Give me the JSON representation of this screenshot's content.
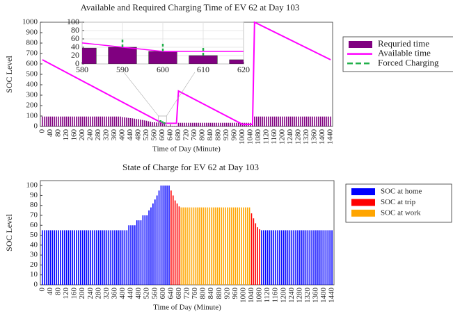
{
  "chart_data": [
    {
      "type": "bar",
      "title": "Available and Required Charging Time of EV 62 at Day 103",
      "xlabel": "Time of Day (Minute)",
      "ylabel": "SOC Level",
      "x": [
        0,
        10,
        20,
        30,
        40,
        50,
        60,
        70,
        80,
        90,
        100,
        110,
        120,
        130,
        140,
        150,
        160,
        170,
        180,
        190,
        200,
        210,
        220,
        230,
        240,
        250,
        260,
        270,
        280,
        290,
        300,
        310,
        320,
        330,
        340,
        350,
        360,
        370,
        380,
        390,
        400,
        410,
        420,
        430,
        440,
        450,
        460,
        470,
        480,
        490,
        500,
        510,
        520,
        530,
        540,
        550,
        560,
        570,
        580,
        590,
        600,
        610,
        620,
        630,
        640,
        650,
        660,
        670,
        680,
        690,
        700,
        710,
        720,
        730,
        740,
        750,
        760,
        770,
        780,
        790,
        800,
        810,
        820,
        830,
        840,
        850,
        860,
        870,
        880,
        890,
        900,
        910,
        920,
        930,
        940,
        950,
        960,
        970,
        980,
        990,
        1000,
        1010,
        1020,
        1030,
        1040,
        1050,
        1060,
        1070,
        1080,
        1090,
        1100,
        1110,
        1120,
        1130,
        1140,
        1150,
        1160,
        1170,
        1180,
        1190,
        1200,
        1210,
        1220,
        1230,
        1240,
        1250,
        1260,
        1270,
        1280,
        1290,
        1300,
        1310,
        1320,
        1330,
        1340,
        1350,
        1360,
        1370,
        1380,
        1390,
        1400,
        1410,
        1420,
        1430,
        1440
      ],
      "series": [
        {
          "name": "Requried time",
          "style": "bar",
          "color": "#800080",
          "values": [
            95,
            95,
            95,
            95,
            95,
            95,
            95,
            95,
            95,
            95,
            95,
            95,
            95,
            95,
            95,
            95,
            95,
            95,
            95,
            95,
            95,
            95,
            95,
            95,
            95,
            95,
            95,
            95,
            95,
            95,
            95,
            95,
            95,
            95,
            95,
            95,
            95,
            95,
            95,
            95,
            90,
            88,
            85,
            82,
            80,
            78,
            75,
            72,
            70,
            65,
            62,
            58,
            55,
            50,
            45,
            40,
            40,
            38,
            38,
            40,
            30,
            20,
            10,
            5,
            5,
            5,
            5,
            5,
            35,
            35,
            35,
            35,
            35,
            35,
            35,
            35,
            35,
            35,
            35,
            35,
            35,
            35,
            35,
            35,
            35,
            35,
            35,
            35,
            35,
            35,
            35,
            35,
            35,
            35,
            35,
            35,
            35,
            35,
            35,
            35,
            35,
            35,
            35,
            35,
            35,
            35,
            95,
            95,
            95,
            95,
            95,
            95,
            95,
            95,
            95,
            95,
            95,
            95,
            95,
            95,
            95,
            95,
            95,
            95,
            95,
            95,
            95,
            95,
            95,
            95,
            95,
            95,
            95,
            95,
            95,
            95,
            95,
            95,
            95,
            95,
            95,
            95,
            95,
            95,
            95
          ]
        },
        {
          "name": "Available time",
          "style": "line",
          "color": "#ff00ff",
          "x": [
            0,
            600,
            670,
            680,
            1000,
            1050,
            1060,
            1440
          ],
          "values": [
            640,
            30,
            30,
            340,
            20,
            20,
            1000,
            640
          ]
        },
        {
          "name": "Forced Charging",
          "style": "dashed-stack",
          "color": "#22b04b",
          "x": [
            590,
            600,
            610
          ],
          "values": [
            20,
            20,
            20
          ]
        }
      ],
      "xlim": [
        -10,
        1450
      ],
      "xticks": [
        0,
        40,
        80,
        120,
        160,
        200,
        240,
        280,
        320,
        360,
        400,
        440,
        480,
        520,
        560,
        600,
        640,
        680,
        720,
        760,
        800,
        840,
        880,
        920,
        960,
        1000,
        1040,
        1080,
        1120,
        1160,
        1200,
        1240,
        1280,
        1320,
        1360,
        1400,
        1440
      ],
      "ylim": [
        0,
        1000
      ],
      "yticks": [
        0,
        100,
        200,
        300,
        400,
        500,
        600,
        700,
        800,
        900,
        1000
      ],
      "inset": {
        "xlim": [
          580,
          620
        ],
        "xticks": [
          580,
          590,
          600,
          610,
          620
        ],
        "ylim": [
          0,
          100
        ],
        "yticks": [
          0,
          20,
          40,
          60,
          80,
          100
        ],
        "grid": true
      }
    },
    {
      "type": "bar",
      "title": "State of Charge for EV 62 at Day 103",
      "xlabel": "Time of Day (Minute)",
      "ylabel": "SOC Level",
      "series": [
        {
          "name": "SOC at home",
          "style": "bar",
          "color": "#0000ff",
          "x": [
            0,
            10,
            20,
            30,
            40,
            50,
            60,
            70,
            80,
            90,
            100,
            110,
            120,
            130,
            140,
            150,
            160,
            170,
            180,
            190,
            200,
            210,
            220,
            230,
            240,
            250,
            260,
            270,
            280,
            290,
            300,
            310,
            320,
            330,
            340,
            350,
            360,
            370,
            380,
            390,
            400,
            410,
            420,
            430,
            440,
            450,
            460,
            470,
            480,
            490,
            500,
            510,
            520,
            530,
            540,
            550,
            560,
            570,
            580,
            590,
            600,
            610,
            620,
            630,
            1090,
            1100,
            1110,
            1120,
            1130,
            1140,
            1150,
            1160,
            1170,
            1180,
            1190,
            1200,
            1210,
            1220,
            1230,
            1240,
            1250,
            1260,
            1270,
            1280,
            1290,
            1300,
            1310,
            1320,
            1330,
            1340,
            1350,
            1360,
            1370,
            1380,
            1390,
            1400,
            1410,
            1420,
            1430,
            1440
          ],
          "values": [
            55,
            55,
            55,
            55,
            55,
            55,
            55,
            55,
            55,
            55,
            55,
            55,
            55,
            55,
            55,
            55,
            55,
            55,
            55,
            55,
            55,
            55,
            55,
            55,
            55,
            55,
            55,
            55,
            55,
            55,
            55,
            55,
            55,
            55,
            55,
            55,
            55,
            55,
            55,
            55,
            55,
            55,
            55,
            60,
            60,
            60,
            60,
            65,
            65,
            65,
            70,
            70,
            70,
            75,
            78,
            82,
            86,
            90,
            95,
            100,
            100,
            100,
            100,
            100,
            55,
            55,
            55,
            55,
            55,
            55,
            55,
            55,
            55,
            55,
            55,
            55,
            55,
            55,
            55,
            55,
            55,
            55,
            55,
            55,
            55,
            55,
            55,
            55,
            55,
            55,
            55,
            55,
            55,
            55,
            55,
            55,
            55,
            55,
            55,
            55
          ]
        },
        {
          "name": "SOC at trip",
          "style": "bar",
          "color": "#ff0000",
          "x": [
            640,
            650,
            660,
            670,
            680,
            1040,
            1050,
            1060,
            1070,
            1080
          ],
          "values": [
            95,
            90,
            85,
            82,
            79,
            72,
            67,
            62,
            58,
            56
          ]
        },
        {
          "name": "SOC at work",
          "style": "bar",
          "color": "#ffa500",
          "x": [
            690,
            700,
            710,
            720,
            730,
            740,
            750,
            760,
            770,
            780,
            790,
            800,
            810,
            820,
            830,
            840,
            850,
            860,
            870,
            880,
            890,
            900,
            910,
            920,
            930,
            940,
            950,
            960,
            970,
            980,
            990,
            1000,
            1010,
            1020,
            1030
          ],
          "values": [
            78,
            78,
            78,
            78,
            78,
            78,
            78,
            78,
            78,
            78,
            78,
            78,
            78,
            78,
            78,
            78,
            78,
            78,
            78,
            78,
            78,
            78,
            78,
            78,
            78,
            78,
            78,
            78,
            78,
            78,
            78,
            78,
            78,
            78,
            78
          ]
        }
      ],
      "xlim": [
        -10,
        1450
      ],
      "xticks": [
        0,
        40,
        80,
        120,
        160,
        200,
        240,
        280,
        320,
        360,
        400,
        440,
        480,
        520,
        560,
        600,
        640,
        680,
        720,
        760,
        800,
        840,
        880,
        920,
        960,
        1000,
        1040,
        1080,
        1120,
        1160,
        1200,
        1240,
        1280,
        1320,
        1360,
        1400,
        1440
      ],
      "ylim": [
        0,
        105
      ],
      "yticks": [
        0,
        10,
        20,
        30,
        40,
        50,
        60,
        70,
        80,
        90,
        100
      ]
    }
  ]
}
